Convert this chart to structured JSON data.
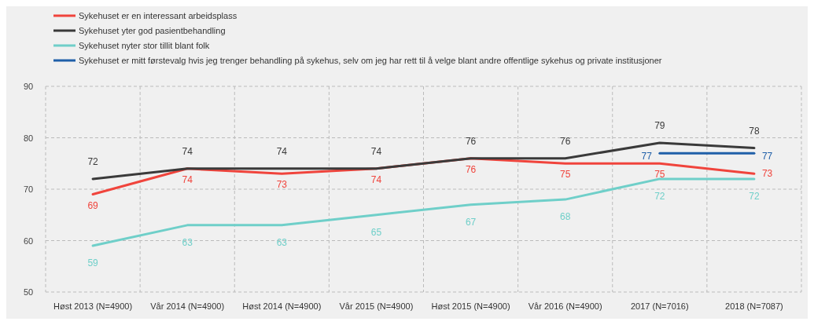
{
  "chart_data": {
    "type": "line",
    "categories": [
      "Høst 2013 (N=4900)",
      "Vår 2014 (N=4900)",
      "Høst 2014 (N=4900)",
      "Vår 2015 (N=4900)",
      "Høst 2015 (N=4900)",
      "Vår 2016 (N=4900)",
      "2017 (N=7016)",
      "2018 (N=7087)"
    ],
    "series": [
      {
        "name": "Sykehuset er en interessant arbeidsplass",
        "color": "#f0443c",
        "values": [
          69,
          74,
          73,
          74,
          76,
          75,
          75,
          73
        ]
      },
      {
        "name": "Sykehuset yter god pasientbehandling",
        "color": "#3a3a3a",
        "values": [
          72,
          74,
          74,
          74,
          76,
          76,
          79,
          78
        ]
      },
      {
        "name": "Sykehuset nyter stor tillit blant folk",
        "color": "#6fcfc9",
        "values": [
          59,
          63,
          63,
          65,
          67,
          68,
          72,
          72
        ]
      },
      {
        "name": "Sykehuset er mitt førstevalg hvis jeg trenger behandling på sykehus, selv om jeg har rett til å velge blant andre offentlige sykehus og private institusjoner",
        "color": "#1f5fa8",
        "values": [
          null,
          null,
          null,
          null,
          null,
          null,
          77,
          77
        ]
      }
    ],
    "ylim": [
      50,
      90
    ],
    "yticks": [
      50,
      60,
      70,
      80,
      90
    ],
    "grid": true,
    "legend": "top left",
    "data_labels": true,
    "marker": "none",
    "line_style": "solid"
  }
}
